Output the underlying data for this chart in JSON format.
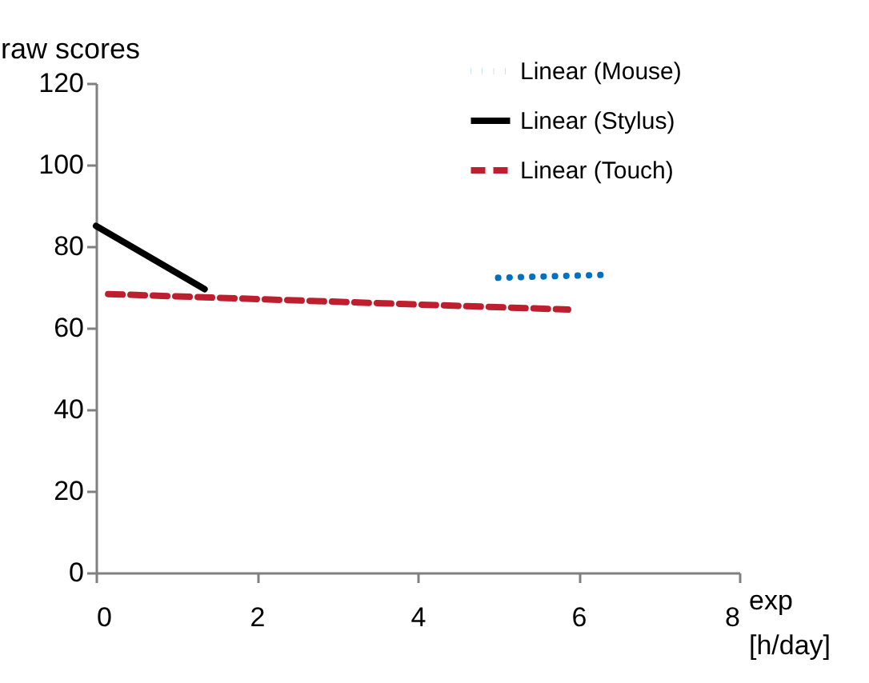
{
  "chart_data": {
    "type": "line",
    "ylabel": "raw scores",
    "xlabel": "exp [h/day]",
    "xlim": [
      0,
      8
    ],
    "xticks": [
      0,
      2,
      4,
      6,
      8
    ],
    "ylim": [
      0,
      120
    ],
    "yticks": [
      0,
      20,
      40,
      60,
      80,
      100,
      120
    ],
    "grid": false,
    "legend": "top right",
    "marker": "none",
    "series": [
      {
        "name": "Linear (Mouse)",
        "color": "#0070c0",
        "line_style": "dotted",
        "x": [
          5.0,
          6.3
        ],
        "values": [
          72.3,
          73.0
        ]
      },
      {
        "name": "Linear (Stylus)",
        "color": "#000000",
        "line_style": "solid",
        "x": [
          0,
          1.35
        ],
        "values": [
          85.0,
          69.5
        ]
      },
      {
        "name": "Linear (Touch)",
        "color": "#be1e2d",
        "line_style": "dashed",
        "x": [
          0.15,
          5.87
        ],
        "values": [
          68.3,
          64.5
        ]
      }
    ]
  }
}
